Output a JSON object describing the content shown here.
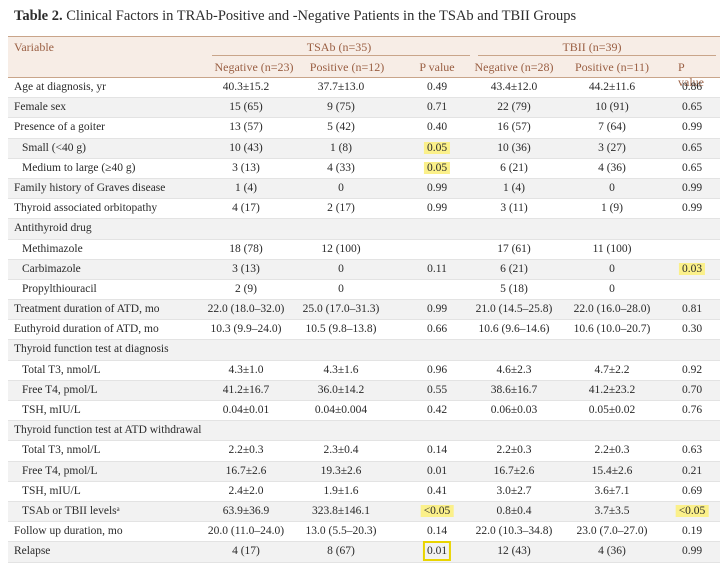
{
  "title": {
    "label": "Table 2.",
    "text": "Clinical Factors in TRAb-Positive and -Negative Patients in the TSAb and TBII Groups"
  },
  "header": {
    "variable": "Variable",
    "tsab_group": "TSAb (n=35)",
    "tbii_group": "TBII (n=39)",
    "tsab_neg": "Negative (n=23)",
    "tsab_pos": "Positive (n=12)",
    "tsab_p": "P value",
    "tbii_neg": "Negative (n=28)",
    "tbii_pos": "Positive (n=11)",
    "tbii_p": "P value"
  },
  "rows": [
    {
      "label": "Age at diagnosis, yr",
      "c1": "40.3±15.2",
      "c2": "37.7±13.0",
      "c3": "0.49",
      "c4": "43.4±12.0",
      "c5": "44.2±11.6",
      "c6": "0.86"
    },
    {
      "label": "Female sex",
      "c1": "15 (65)",
      "c2": "9 (75)",
      "c3": "0.71",
      "c4": "22 (79)",
      "c5": "10 (91)",
      "c6": "0.65"
    },
    {
      "label": "Presence of a goiter",
      "c1": "13 (57)",
      "c2": "5 (42)",
      "c3": "0.40",
      "c4": "16 (57)",
      "c5": "7 (64)",
      "c6": "0.99"
    },
    {
      "label": "Small (<40 g)",
      "sub": true,
      "c1": "10 (43)",
      "c2": "1 (8)",
      "c3": "0.05",
      "c4": "10 (36)",
      "c5": "3 (27)",
      "c6": "0.65",
      "hl3": true
    },
    {
      "label": "Medium to large (≥40 g)",
      "sub": true,
      "c1": "3 (13)",
      "c2": "4 (33)",
      "c3": "0.05",
      "c4": "6 (21)",
      "c5": "4 (36)",
      "c6": "0.65",
      "hl3": true
    },
    {
      "label": "Family history of Graves disease",
      "c1": "1 (4)",
      "c2": "0",
      "c3": "0.99",
      "c4": "1 (4)",
      "c5": "0",
      "c6": "0.99"
    },
    {
      "label": "Thyroid associated orbitopathy",
      "c1": "4 (17)",
      "c2": "2 (17)",
      "c3": "0.99",
      "c4": "3 (11)",
      "c5": "1 (9)",
      "c6": "0.99"
    },
    {
      "label": "Antithyroid drug",
      "c1": "",
      "c2": "",
      "c3": "",
      "c4": "",
      "c5": "",
      "c6": ""
    },
    {
      "label": "Methimazole",
      "sub": true,
      "c1": "18 (78)",
      "c2": "12 (100)",
      "c3": "",
      "c4": "17 (61)",
      "c5": "11 (100)",
      "c6": ""
    },
    {
      "label": "Carbimazole",
      "sub": true,
      "c1": "3 (13)",
      "c2": "0",
      "c3": "0.11",
      "c4": "6 (21)",
      "c5": "0",
      "c6": "0.03",
      "hl6": true
    },
    {
      "label": "Propylthiouracil",
      "sub": true,
      "c1": "2 (9)",
      "c2": "0",
      "c3": "",
      "c4": "5 (18)",
      "c5": "0",
      "c6": ""
    },
    {
      "label": "Treatment duration of ATD, mo",
      "c1": "22.0 (18.0–32.0)",
      "c2": "25.0 (17.0–31.3)",
      "c3": "0.99",
      "c4": "21.0 (14.5–25.8)",
      "c5": "22.0 (16.0–28.0)",
      "c6": "0.81"
    },
    {
      "label": "Euthyroid duration of ATD, mo",
      "c1": "10.3 (9.9–24.0)",
      "c2": "10.5 (9.8–13.8)",
      "c3": "0.66",
      "c4": "10.6 (9.6–14.6)",
      "c5": "10.6 (10.0–20.7)",
      "c6": "0.30"
    },
    {
      "label": "Thyroid function test at diagnosis",
      "c1": "",
      "c2": "",
      "c3": "",
      "c4": "",
      "c5": "",
      "c6": ""
    },
    {
      "label": "Total T3, nmol/L",
      "sub": true,
      "c1": "4.3±1.0",
      "c2": "4.3±1.6",
      "c3": "0.96",
      "c4": "4.6±2.3",
      "c5": "4.7±2.2",
      "c6": "0.92"
    },
    {
      "label": "Free T4, pmol/L",
      "sub": true,
      "c1": "41.2±16.7",
      "c2": "36.0±14.2",
      "c3": "0.55",
      "c4": "38.6±16.7",
      "c5": "41.2±23.2",
      "c6": "0.70"
    },
    {
      "label": "TSH, mIU/L",
      "sub": true,
      "c1": "0.04±0.01",
      "c2": "0.04±0.004",
      "c3": "0.42",
      "c4": "0.06±0.03",
      "c5": "0.05±0.02",
      "c6": "0.76"
    },
    {
      "label": "Thyroid function test at ATD withdrawal",
      "c1": "",
      "c2": "",
      "c3": "",
      "c4": "",
      "c5": "",
      "c6": ""
    },
    {
      "label": "Total T3, nmol/L",
      "sub": true,
      "c1": "2.2±0.3",
      "c2": "2.3±0.4",
      "c3": "0.14",
      "c4": "2.2±0.3",
      "c5": "2.2±0.3",
      "c6": "0.63"
    },
    {
      "label": "Free T4, pmol/L",
      "sub": true,
      "c1": "16.7±2.6",
      "c2": "19.3±2.6",
      "c3": "0.01",
      "c4": "16.7±2.6",
      "c5": "15.4±2.6",
      "c6": "0.21"
    },
    {
      "label": "TSH, mIU/L",
      "sub": true,
      "c1": "2.4±2.0",
      "c2": "1.9±1.6",
      "c3": "0.41",
      "c4": "3.0±2.7",
      "c5": "3.6±7.1",
      "c6": "0.69"
    },
    {
      "label": "TSAb or TBII levelsᵃ",
      "sub": true,
      "c1": "63.9±36.9",
      "c2": "323.8±146.1",
      "c3": "<0.05",
      "c4": "0.8±0.4",
      "c5": "3.7±3.5",
      "c6": "<0.05",
      "hl3": true,
      "hl6": true
    },
    {
      "label": "Follow up duration, mo",
      "c1": "20.0 (11.0–24.0)",
      "c2": "13.0 (5.5–20.3)",
      "c3": "0.14",
      "c4": "22.0 (10.3–34.8)",
      "c5": "23.0 (7.0–27.0)",
      "c6": "0.19"
    },
    {
      "label": "Relapse",
      "c1": "4 (17)",
      "c2": "8 (67)",
      "c3": "0.01",
      "c4": "12 (43)",
      "c5": "4 (36)",
      "c6": "0.99",
      "box3": true
    }
  ]
}
